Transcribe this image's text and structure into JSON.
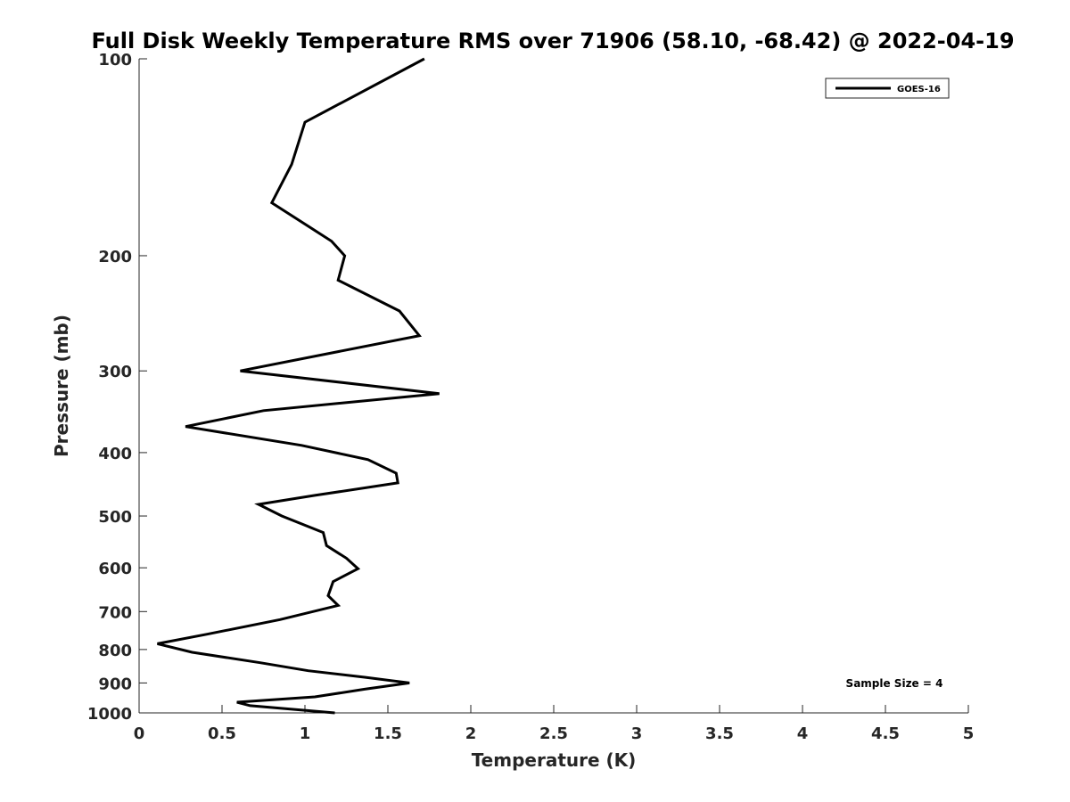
{
  "chart_data": {
    "type": "line",
    "title": "Full Disk Weekly Temperature RMS over 71906 (58.10, -68.42) @ 2022-04-19",
    "xlabel": "Temperature (K)",
    "ylabel": "Pressure (mb)",
    "xlim": [
      0,
      5
    ],
    "ylim": [
      100,
      1000
    ],
    "yscale": "log",
    "y_reversed": true,
    "grid": false,
    "legend_position": "top-right",
    "xticks": [
      0,
      0.5,
      1,
      1.5,
      2,
      2.5,
      3,
      3.5,
      4,
      4.5,
      5
    ],
    "xtick_labels": [
      "0",
      "0.5",
      "1",
      "1.5",
      "2",
      "2.5",
      "3",
      "3.5",
      "4",
      "4.5",
      "5"
    ],
    "yticks": [
      100,
      200,
      300,
      400,
      500,
      600,
      700,
      800,
      900,
      1000
    ],
    "ytick_labels": [
      "100",
      "200",
      "300",
      "400",
      "500",
      "600",
      "700",
      "800",
      "900",
      "1000"
    ],
    "series": [
      {
        "name": "GOES-16",
        "color": "#000000",
        "x": [
          1.72,
          1.0,
          0.92,
          0.8,
          1.16,
          1.24,
          1.2,
          1.57,
          1.69,
          0.61,
          1.81,
          0.75,
          0.28,
          0.98,
          1.38,
          1.55,
          1.56,
          1.06,
          0.72,
          0.86,
          1.11,
          1.13,
          1.25,
          1.32,
          1.17,
          1.14,
          1.2,
          0.85,
          0.41,
          0.11,
          0.32,
          0.73,
          1.02,
          1.36,
          1.63,
          1.36,
          1.06,
          0.59,
          0.67,
          1.18
        ],
        "y": [
          100,
          125,
          145,
          166,
          190,
          200,
          218,
          243,
          265,
          300,
          325,
          345,
          365,
          390,
          410,
          430,
          445,
          465,
          480,
          500,
          530,
          555,
          580,
          602,
          630,
          662,
          685,
          720,
          758,
          784,
          808,
          838,
          862,
          882,
          900,
          920,
          945,
          963,
          975,
          1000
        ]
      }
    ],
    "annotation": "Sample Size = 4"
  }
}
